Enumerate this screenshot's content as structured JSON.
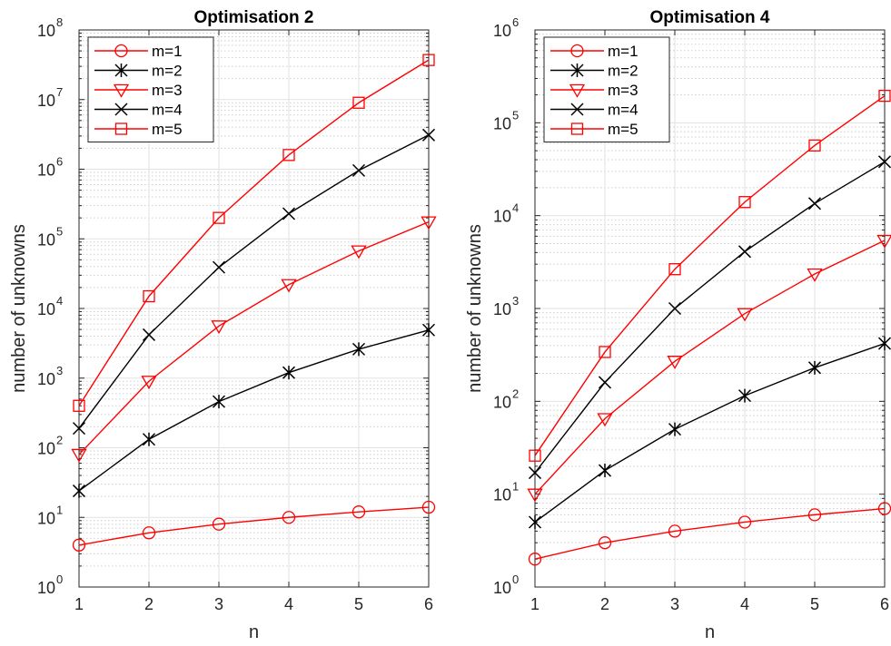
{
  "chart_data": [
    {
      "type": "line",
      "title": "Optimisation 2",
      "xlabel": "n",
      "ylabel": "number of unknowns",
      "yscale": "log",
      "xlim": [
        1,
        6
      ],
      "ylim": [
        1,
        100000000
      ],
      "x_ticks": [
        "1",
        "2",
        "3",
        "4",
        "5",
        "6"
      ],
      "y_tick_exponents": [
        "0",
        "1",
        "2",
        "3",
        "4",
        "5",
        "6",
        "7",
        "8"
      ],
      "y_tick_base": "10",
      "grid": true,
      "minor_grid": true,
      "legend_position": "top-left",
      "x": [
        1,
        2,
        3,
        4,
        5,
        6
      ],
      "series": [
        {
          "name": "m=1",
          "color": "#ff0000",
          "marker": "circle",
          "values": [
            4,
            6,
            8,
            10,
            12,
            14
          ]
        },
        {
          "name": "m=2",
          "color": "#000000",
          "marker": "asterisk",
          "values": [
            24,
            132,
            460,
            1200,
            2600,
            4900
          ]
        },
        {
          "name": "m=3",
          "color": "#ff0000",
          "marker": "triangle-down",
          "values": [
            80,
            900,
            5600,
            22000,
            67000,
            175000
          ]
        },
        {
          "name": "m=4",
          "color": "#000000",
          "marker": "x",
          "values": [
            190,
            4200,
            39000,
            230000,
            960000,
            3100000
          ]
        },
        {
          "name": "m=5",
          "color": "#ff0000",
          "marker": "square",
          "values": [
            400,
            15000,
            200000,
            1600000,
            9000000,
            37000000
          ]
        }
      ]
    },
    {
      "type": "line",
      "title": "Optimisation 4",
      "xlabel": "n",
      "ylabel": "number of unknowns",
      "yscale": "log",
      "xlim": [
        1,
        6
      ],
      "ylim": [
        1,
        1000000
      ],
      "x_ticks": [
        "1",
        "2",
        "3",
        "4",
        "5",
        "6"
      ],
      "y_tick_exponents": [
        "0",
        "1",
        "2",
        "3",
        "4",
        "5",
        "6"
      ],
      "y_tick_base": "10",
      "grid": true,
      "minor_grid": true,
      "legend_position": "top-left",
      "x": [
        1,
        2,
        3,
        4,
        5,
        6
      ],
      "series": [
        {
          "name": "m=1",
          "color": "#ff0000",
          "marker": "circle",
          "values": [
            2,
            3,
            4,
            5,
            6,
            7
          ]
        },
        {
          "name": "m=2",
          "color": "#000000",
          "marker": "asterisk",
          "values": [
            5,
            18,
            50,
            115,
            230,
            420
          ]
        },
        {
          "name": "m=3",
          "color": "#ff0000",
          "marker": "triangle-down",
          "values": [
            10,
            65,
            270,
            880,
            2350,
            5400
          ]
        },
        {
          "name": "m=4",
          "color": "#000000",
          "marker": "x",
          "values": [
            17,
            160,
            1000,
            4100,
            13500,
            38000
          ]
        },
        {
          "name": "m=5",
          "color": "#ff0000",
          "marker": "square",
          "values": [
            26,
            340,
            2650,
            14000,
            57000,
            195000
          ]
        }
      ]
    }
  ]
}
